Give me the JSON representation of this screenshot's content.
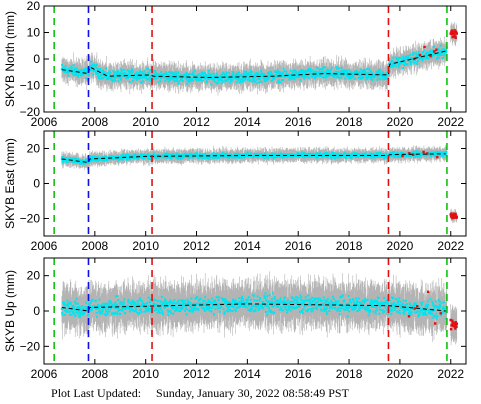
{
  "footer": {
    "label": "Plot Last Updated:",
    "timestamp": "Sunday, January 30, 2022 08:58:49 PST"
  },
  "colors": {
    "errorbar": "#b4b4b4",
    "data": "#00e5f0",
    "outlier": "#e01010",
    "model": "#000000",
    "offset_equipment": "#1010e0",
    "offset_earthquake": "#e01010",
    "offset_other": "#10c010"
  },
  "chart_data": [
    {
      "type": "scatter",
      "station": "SKYB",
      "ylabel": "SKYB North (mm)",
      "xlim": [
        2006,
        2022.6
      ],
      "ylim": [
        -20,
        20
      ],
      "xticks": [
        2006,
        2008,
        2010,
        2012,
        2014,
        2016,
        2018,
        2020,
        2022
      ],
      "yticks": [
        -20,
        -10,
        0,
        10,
        20
      ],
      "data_start": 2006.7,
      "data_end": 2021.85,
      "model_trend": [
        [
          2006.7,
          -4
        ],
        [
          2007.75,
          -5.5
        ],
        [
          2007.8,
          -3
        ],
        [
          2008.5,
          -6.5
        ],
        [
          2010.2,
          -6
        ],
        [
          2010.3,
          -6.5
        ],
        [
          2012.5,
          -7
        ],
        [
          2015,
          -6.5
        ],
        [
          2017,
          -5.5
        ],
        [
          2019.55,
          -6
        ],
        [
          2019.6,
          -2
        ],
        [
          2021.8,
          3
        ]
      ],
      "noise_mm": 1.8,
      "errorbar_mm": 3.5,
      "post_segment": {
        "x": [
          2022.0,
          2022.25
        ],
        "center": 10,
        "spread": 3
      },
      "grid": false,
      "vlines": [
        {
          "x": 2006.4,
          "kind": "offset_other"
        },
        {
          "x": 2007.75,
          "kind": "offset_equipment"
        },
        {
          "x": 2010.25,
          "kind": "offset_earthquake"
        },
        {
          "x": 2019.55,
          "kind": "offset_earthquake"
        },
        {
          "x": 2021.85,
          "kind": "offset_other"
        }
      ]
    },
    {
      "type": "scatter",
      "station": "SKYB",
      "ylabel": "SKYB East (mm)",
      "xlim": [
        2006,
        2022.6
      ],
      "ylim": [
        -30,
        30
      ],
      "xticks": [
        2006,
        2008,
        2010,
        2012,
        2014,
        2016,
        2018,
        2020,
        2022
      ],
      "yticks": [
        -20,
        0,
        20
      ],
      "data_start": 2006.7,
      "data_end": 2021.85,
      "model_trend": [
        [
          2006.7,
          14
        ],
        [
          2007.75,
          12
        ],
        [
          2007.8,
          14
        ],
        [
          2010,
          15.5
        ],
        [
          2014,
          16
        ],
        [
          2019.55,
          16
        ],
        [
          2019.6,
          16.5
        ],
        [
          2021.8,
          17
        ]
      ],
      "noise_mm": 1.2,
      "errorbar_mm": 3,
      "post_segment": {
        "x": [
          2022.0,
          2022.25
        ],
        "center": -19,
        "spread": 3
      },
      "grid": false,
      "vlines": [
        {
          "x": 2006.4,
          "kind": "offset_other"
        },
        {
          "x": 2007.75,
          "kind": "offset_equipment"
        },
        {
          "x": 2010.25,
          "kind": "offset_earthquake"
        },
        {
          "x": 2019.55,
          "kind": "offset_earthquake"
        },
        {
          "x": 2021.85,
          "kind": "offset_other"
        }
      ]
    },
    {
      "type": "scatter",
      "station": "SKYB",
      "ylabel": "SKYB Up (mm)",
      "xlim": [
        2006,
        2022.6
      ],
      "ylim": [
        -30,
        30
      ],
      "xticks": [
        2006,
        2008,
        2010,
        2012,
        2014,
        2016,
        2018,
        2020,
        2022
      ],
      "yticks": [
        -20,
        0,
        20
      ],
      "data_start": 2006.7,
      "data_end": 2021.85,
      "model_trend": [
        [
          2006.7,
          2
        ],
        [
          2007.75,
          0
        ],
        [
          2007.8,
          2
        ],
        [
          2014,
          4
        ],
        [
          2019.55,
          3
        ],
        [
          2019.6,
          3
        ],
        [
          2021.8,
          0
        ]
      ],
      "noise_mm": 4,
      "errorbar_mm": 10,
      "post_segment": {
        "x": [
          2022.0,
          2022.25
        ],
        "center": -8,
        "spread": 6
      },
      "grid": false,
      "vlines": [
        {
          "x": 2006.4,
          "kind": "offset_other"
        },
        {
          "x": 2007.75,
          "kind": "offset_equipment"
        },
        {
          "x": 2010.25,
          "kind": "offset_earthquake"
        },
        {
          "x": 2019.55,
          "kind": "offset_earthquake"
        },
        {
          "x": 2021.85,
          "kind": "offset_other"
        }
      ]
    }
  ]
}
